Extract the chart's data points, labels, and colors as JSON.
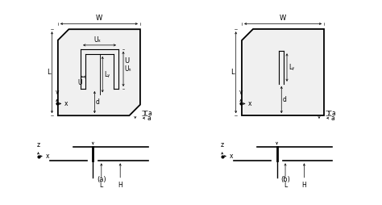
{
  "fig_width": 4.74,
  "fig_height": 2.54,
  "dpi": 100,
  "bg_color": "#ffffff",
  "caption_a": "(a)",
  "caption_b": "(b)",
  "label_W": "W",
  "label_L": "L",
  "label_U": "U",
  "label_Ux": "Uₓ",
  "label_Ud": "Uₙ",
  "label_Ly": "Lᵧ",
  "label_d": "d",
  "label_a": "a",
  "label_H": "H",
  "label_L2": "L",
  "label_Z": "z",
  "label_x": "x",
  "label_v": "v"
}
